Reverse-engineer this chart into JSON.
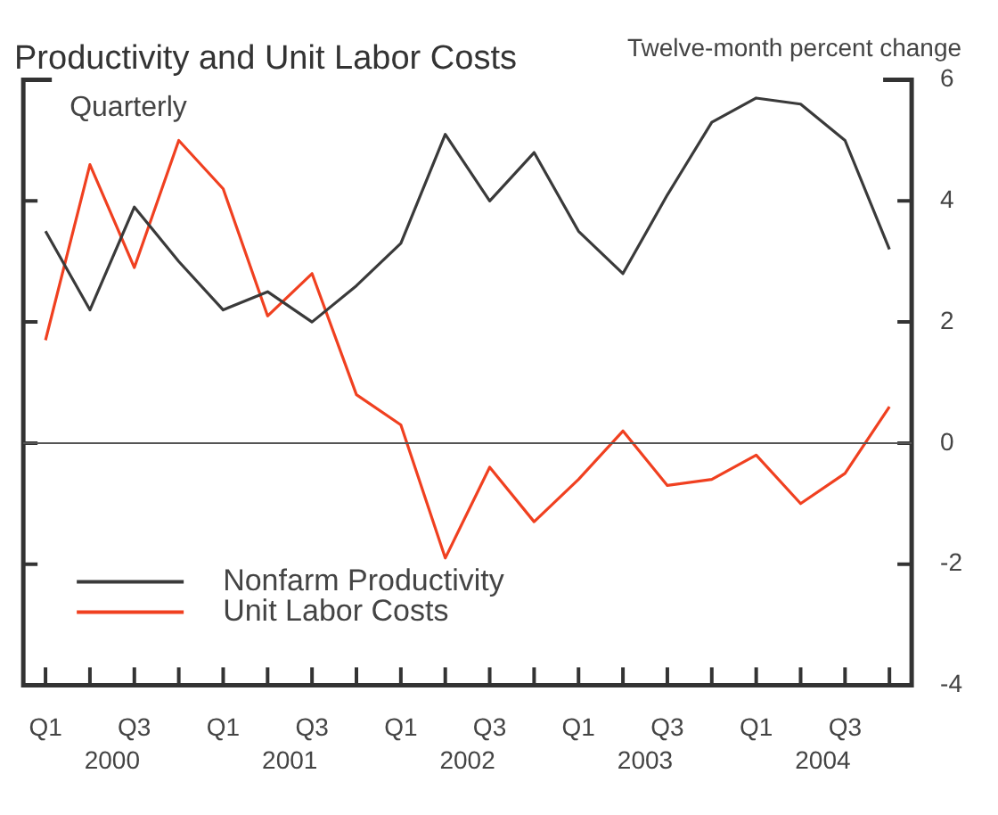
{
  "chart_data": {
    "type": "line",
    "title": "Productivity and Unit Labor Costs",
    "ylabel": "Twelve-month percent change",
    "categories": [
      "Q1",
      null,
      "Q3",
      null,
      "Q1",
      null,
      "Q3",
      null,
      "Q1",
      null,
      "Q3",
      null,
      "Q1",
      null,
      "Q3",
      null,
      "Q1",
      null,
      "Q3",
      null
    ],
    "series": [
      {
        "name": "Nonfarm Productivity",
        "color": "#3a3a3a",
        "values": [
          3.5,
          2.2,
          3.9,
          3.0,
          2.2,
          2.5,
          2.0,
          2.6,
          3.3,
          5.1,
          4.0,
          4.8,
          3.5,
          2.8,
          4.1,
          5.3,
          5.7,
          5.6,
          5.0,
          3.2
        ]
      },
      {
        "name": "Unit Labor Costs",
        "color": "#f04020",
        "values": [
          1.7,
          4.6,
          2.9,
          5.0,
          4.2,
          2.1,
          2.8,
          0.8,
          0.3,
          -1.9,
          -0.4,
          -1.3,
          -0.6,
          0.2,
          -0.7,
          -0.6,
          -0.2,
          -1.0,
          -0.5,
          0.6
        ]
      }
    ],
    "annotations": [
      "Quarterly",
      "2000",
      "2001",
      "2002",
      "2003",
      "2004"
    ],
    "ylim": [
      -4,
      6
    ],
    "yticks": [
      -4,
      -2,
      0,
      2,
      4,
      6
    ],
    "ref_lines": [
      {
        "axis": "y",
        "value": 0,
        "color": "#555555"
      }
    ],
    "legend": "bottom left",
    "grid": false,
    "marker": "none",
    "line_style": "solid"
  }
}
